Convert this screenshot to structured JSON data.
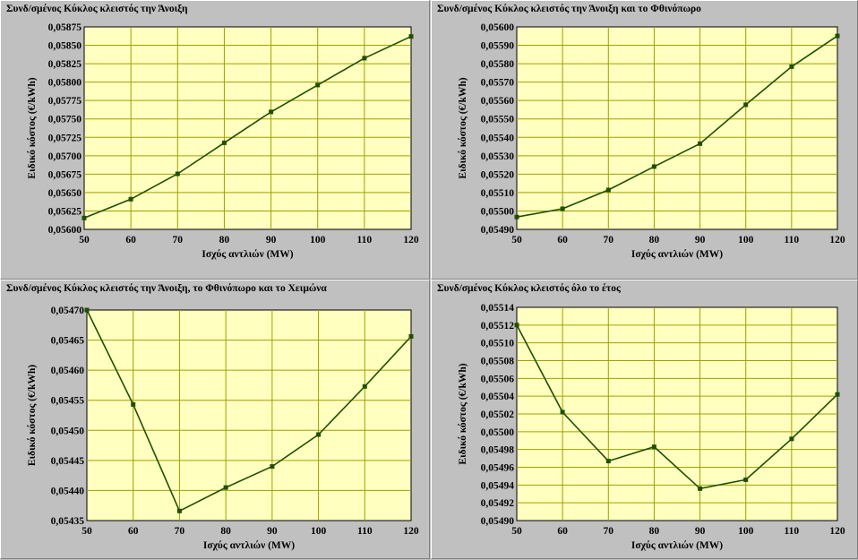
{
  "colors": {
    "plot_background": "#ffffc0",
    "grid": "#a0a000",
    "line": "#1f4f00",
    "marker": "#1f4f00",
    "panel_background": "#c0c0c0"
  },
  "chart_data": [
    {
      "type": "line",
      "title": "Συνδ/σμένος Κύκλος κλειστός την Άνοιξη",
      "xlabel": "Ισχύς αντλιών (MW)",
      "ylabel": "Ειδικό κόστος (€/kWh)",
      "x": [
        50,
        60,
        70,
        80,
        90,
        100,
        110,
        120
      ],
      "series": [
        {
          "values": [
            0.056155,
            0.05641,
            0.056755,
            0.057175,
            0.057595,
            0.05796,
            0.058325,
            0.05862
          ]
        }
      ],
      "xlim": [
        50,
        120
      ],
      "ylim": [
        0.056,
        0.05875
      ],
      "xticks": [
        "50",
        "60",
        "70",
        "80",
        "90",
        "100",
        "110",
        "120"
      ],
      "yticks": [
        "0,05600",
        "0,05625",
        "0,05650",
        "0,05675",
        "0,05700",
        "0,05725",
        "0,05750",
        "0,05775",
        "0,05800",
        "0,05825",
        "0,05850",
        "0,05875"
      ],
      "grid": true,
      "legend": "none"
    },
    {
      "type": "line",
      "title": "Συνδ/σμένος Κύκλος κλειστός την Άνοιξη και το Φθινόπωρο",
      "xlabel": "Ισχύς αντλιών (MW)",
      "ylabel": "Ειδικό κόστος (€/kWh)",
      "x": [
        50,
        60,
        70,
        80,
        90,
        100,
        110,
        120
      ],
      "series": [
        {
          "values": [
            0.054967,
            0.055012,
            0.055114,
            0.055241,
            0.055366,
            0.055577,
            0.055784,
            0.055951
          ]
        }
      ],
      "xlim": [
        50,
        120
      ],
      "ylim": [
        0.0549,
        0.056
      ],
      "xticks": [
        "50",
        "60",
        "70",
        "80",
        "90",
        "100",
        "110",
        "120"
      ],
      "yticks": [
        "0,05490",
        "0,05500",
        "0,05510",
        "0,05520",
        "0,05530",
        "0,05540",
        "0,05550",
        "0,05560",
        "0,05570",
        "0,05580",
        "0,05590",
        "0,05600"
      ],
      "grid": true,
      "legend": "none"
    },
    {
      "type": "line",
      "title": "Συνδ/σμένος Κύκλος κλειστός την Άνοιξη, το Φθινόπωρο και το Χειμώνα",
      "xlabel": "Ισχύς αντλιών (MW)",
      "ylabel": "Ειδικό κόστος (€/kWh)",
      "x": [
        50,
        60,
        70,
        80,
        90,
        100,
        110,
        120
      ],
      "series": [
        {
          "values": [
            0.0547,
            0.054543,
            0.054366,
            0.054405,
            0.05444,
            0.054493,
            0.054573,
            0.054656
          ]
        }
      ],
      "xlim": [
        50,
        120
      ],
      "ylim": [
        0.05435,
        0.0547
      ],
      "xticks": [
        "50",
        "60",
        "70",
        "80",
        "90",
        "100",
        "110",
        "120"
      ],
      "yticks": [
        "0,05435",
        "0,05440",
        "0,05445",
        "0,05450",
        "0,05455",
        "0,05460",
        "0,05465",
        "0,05470"
      ],
      "grid": true,
      "legend": "none"
    },
    {
      "type": "line",
      "title": "Συνδ/σμένος Κύκλος κλειστός όλο το έτος",
      "xlabel": "Ισχύς αντλιών (MW)",
      "ylabel": "Ειδικό κόστος (€/kWh)",
      "x": [
        50,
        60,
        70,
        80,
        90,
        100,
        110,
        120
      ],
      "series": [
        {
          "values": [
            0.05512,
            0.055022,
            0.054967,
            0.054983,
            0.054936,
            0.054946,
            0.054992,
            0.055042
          ]
        }
      ],
      "xlim": [
        50,
        120
      ],
      "ylim": [
        0.0549,
        0.05514
      ],
      "xticks": [
        "50",
        "60",
        "70",
        "80",
        "90",
        "100",
        "110",
        "120"
      ],
      "yticks": [
        "0,05490",
        "0,05492",
        "0,05494",
        "0,05496",
        "0,05498",
        "0,05500",
        "0,05502",
        "0,05504",
        "0,05506",
        "0,05508",
        "0,05510",
        "0,05512",
        "0,05514"
      ],
      "grid": true,
      "legend": "none"
    }
  ]
}
